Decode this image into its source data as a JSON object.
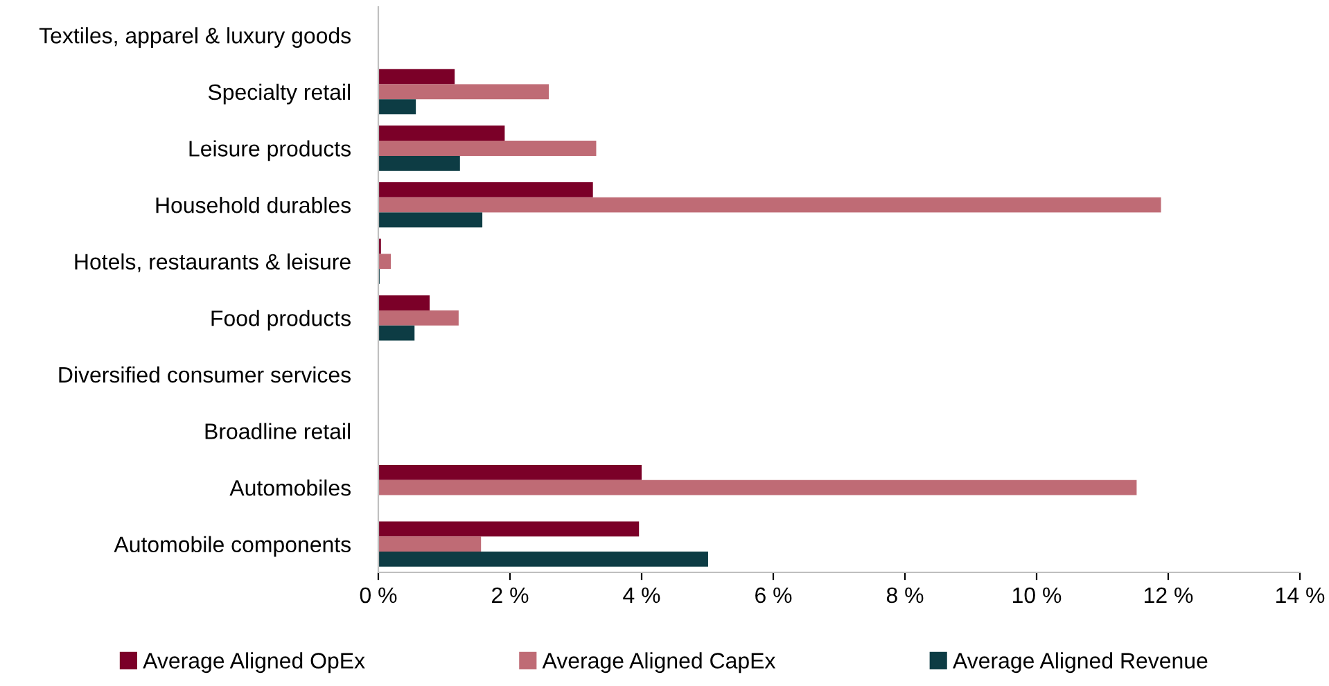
{
  "chart_data": {
    "type": "bar",
    "orientation": "horizontal",
    "categories": [
      "Textiles, apparel & luxury goods",
      "Specialty retail",
      "Leisure products",
      "Household durables",
      "Hotels, restaurants & leisure",
      "Food products",
      "Diversified consumer services",
      "Broadline retail",
      "Automobiles",
      "Automobile components"
    ],
    "series": [
      {
        "name": "Average Aligned OpEx",
        "color": "#7b0028",
        "values": [
          0,
          1.16,
          1.92,
          3.26,
          0.04,
          0.78,
          0,
          0,
          4.0,
          3.96
        ]
      },
      {
        "name": "Average Aligned CapEx",
        "color": "#bf6b75",
        "values": [
          0,
          2.59,
          3.31,
          11.89,
          0.19,
          1.22,
          0,
          0,
          11.52,
          1.56
        ]
      },
      {
        "name": "Average Aligned Revenue",
        "color": "#0d3c44",
        "values": [
          0,
          0.57,
          1.24,
          1.58,
          0.02,
          0.55,
          0,
          0,
          0,
          5.01
        ]
      }
    ],
    "xlim": [
      0,
      14
    ],
    "xticks": [
      {
        "value": 0,
        "label": "0 %"
      },
      {
        "value": 2,
        "label": "2 %"
      },
      {
        "value": 4,
        "label": "4 %"
      },
      {
        "value": 6,
        "label": "6 %"
      },
      {
        "value": 8,
        "label": "8 %"
      },
      {
        "value": 10,
        "label": "10 %"
      },
      {
        "value": 12,
        "label": "12 %"
      },
      {
        "value": 14,
        "label": "14 %"
      }
    ],
    "grid": false,
    "legend": "bottom"
  }
}
